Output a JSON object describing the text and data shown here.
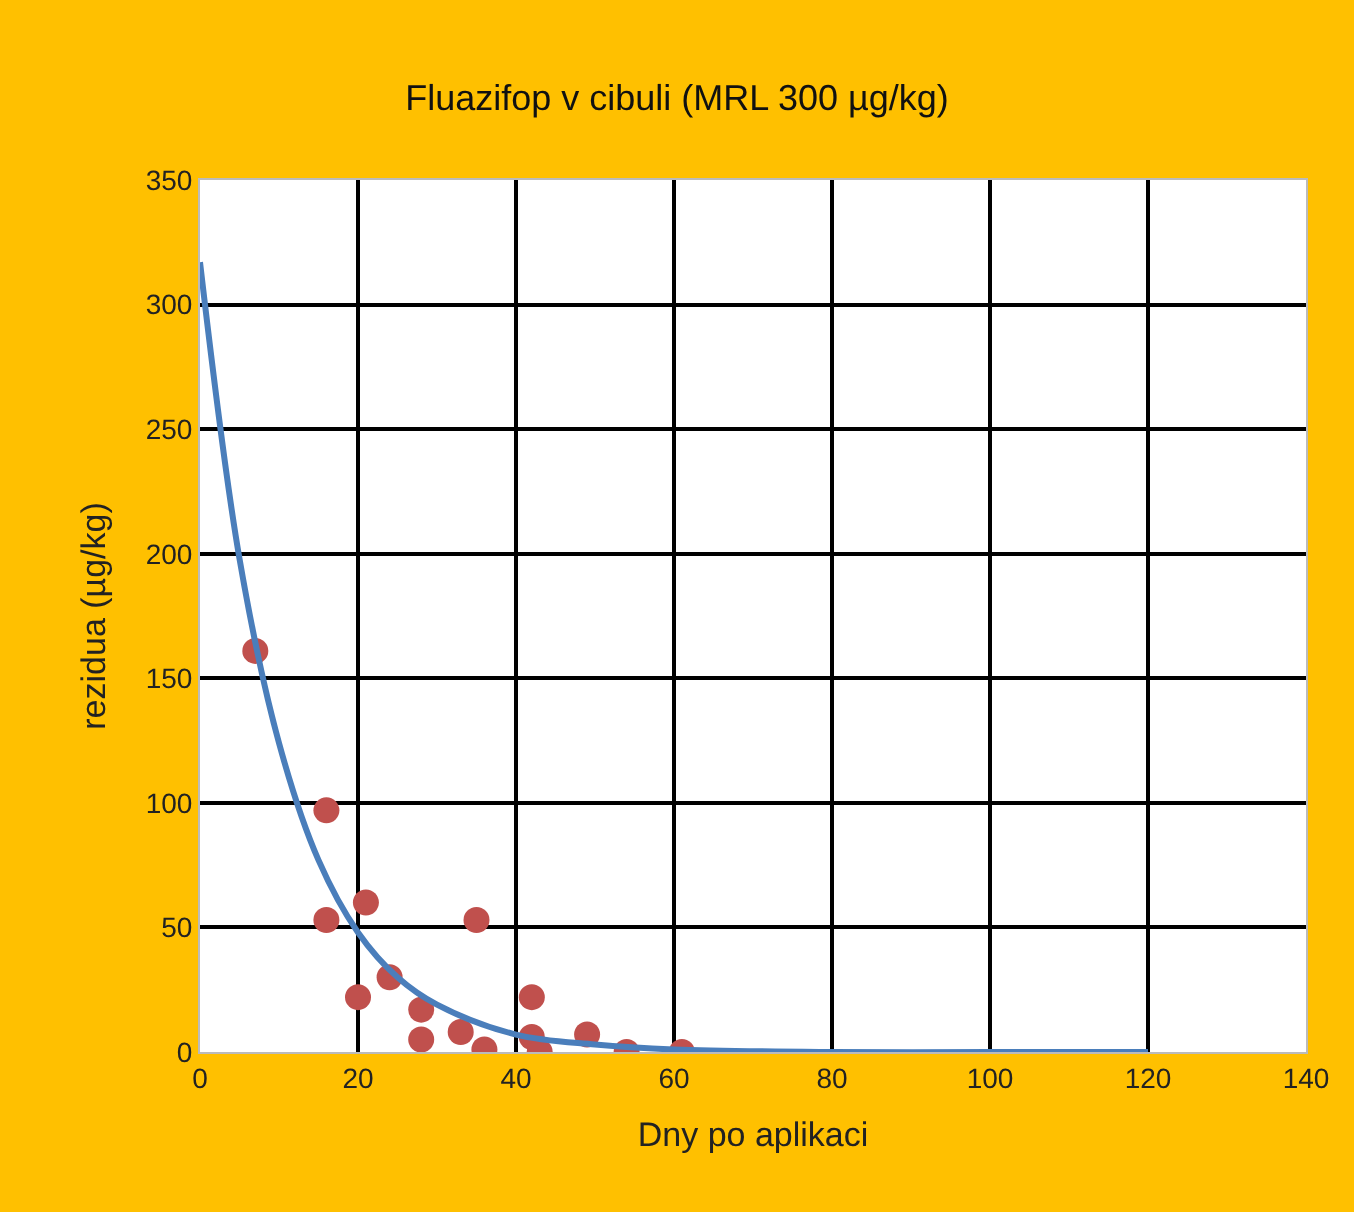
{
  "chart_data": {
    "type": "scatter",
    "title": "Fluazifop v cibuli (MRL 300 µg/kg)",
    "xlabel": "Dny po aplikaci",
    "ylabel": "rezidua (µg/kg)",
    "xlim": [
      0,
      140
    ],
    "xticks": [
      0,
      20,
      40,
      60,
      80,
      100,
      120,
      140
    ],
    "ylim": [
      0,
      350
    ],
    "yticks": [
      0,
      50,
      100,
      150,
      200,
      250,
      300,
      350
    ],
    "grid": true,
    "series": [
      {
        "color": "#c0504d",
        "marker": "circle",
        "x": [
          7,
          16,
          16,
          21,
          20,
          24,
          28,
          28,
          33,
          35,
          36,
          42,
          42,
          43,
          49,
          54,
          61
        ],
        "values": [
          161,
          97,
          53,
          60,
          22,
          30,
          17,
          5,
          8,
          53,
          1,
          22,
          6,
          0,
          7,
          0,
          0
        ]
      },
      {
        "type": "line",
        "marker": "none",
        "color": "#4a7ebb",
        "x": [
          0,
          5,
          10,
          15,
          20,
          25,
          30,
          40,
          50,
          60,
          80,
          100,
          120
        ],
        "values": [
          317,
          198,
          124,
          77,
          48,
          30,
          19,
          7,
          3,
          1,
          0,
          0,
          0
        ]
      }
    ]
  }
}
